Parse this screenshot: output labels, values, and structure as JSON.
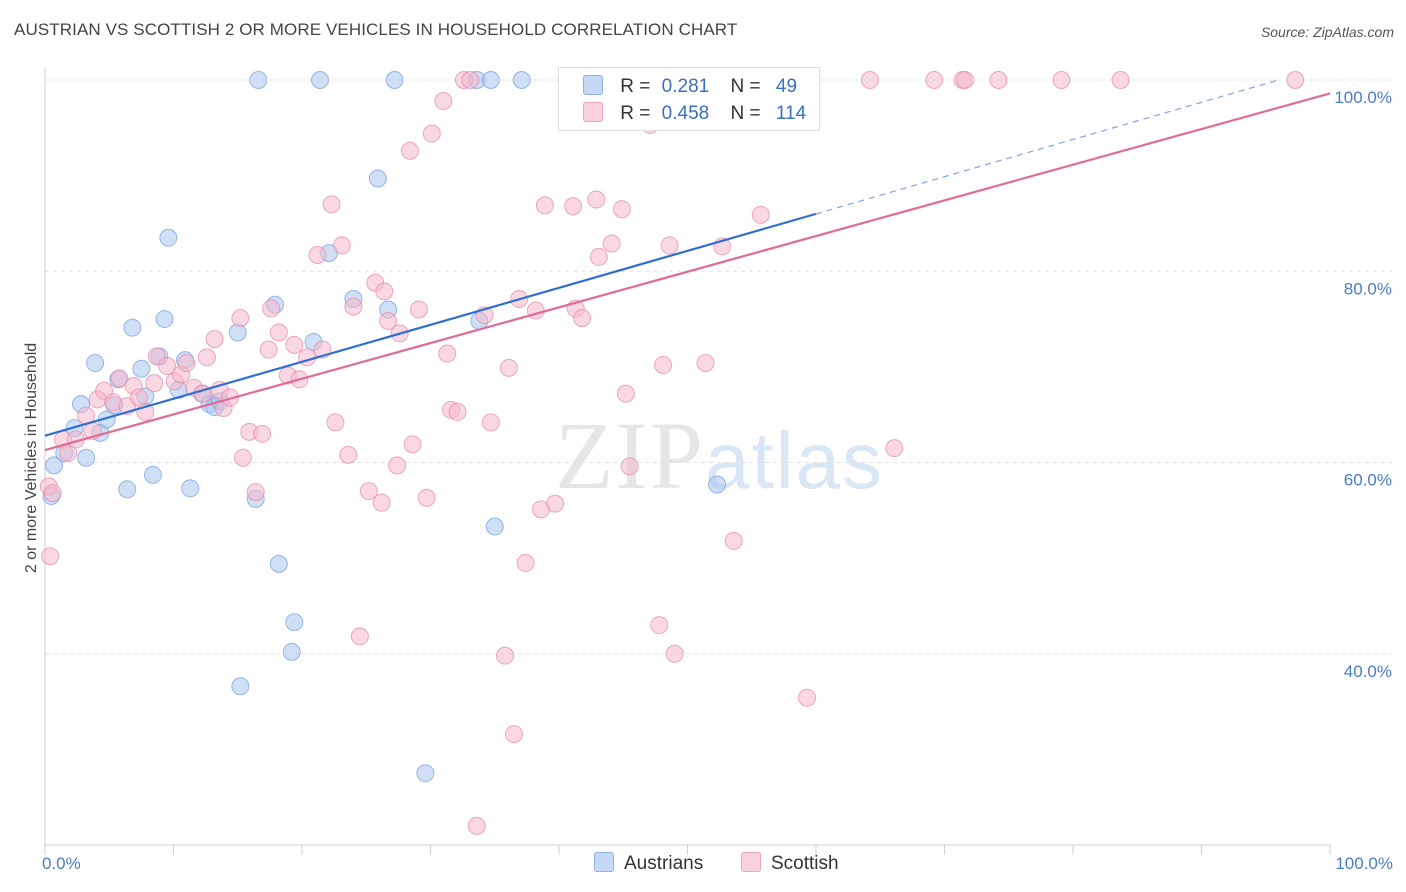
{
  "title": "AUSTRIAN VS SCOTTISH 2 OR MORE VEHICLES IN HOUSEHOLD CORRELATION CHART",
  "source": "Source: ZipAtlas.com",
  "watermark": {
    "zip": "ZIP",
    "atlas": "atlas"
  },
  "legend": {
    "rows": [
      {
        "r_label": "R =",
        "r_value": "0.281",
        "n_label": "N =",
        "n_value": "49",
        "color": "#a8c4ee"
      },
      {
        "r_label": "R =",
        "r_value": "0.458",
        "n_label": "N =",
        "n_value": "114",
        "color": "#f5b8cc"
      }
    ]
  },
  "bottom_legend": [
    {
      "label": "Austrians",
      "color": "#a8c4ee"
    },
    {
      "label": "Scottish",
      "color": "#f5b8cc"
    }
  ],
  "chart_data": {
    "type": "scatter",
    "title": "AUSTRIAN VS SCOTTISH 2 OR MORE VEHICLES IN HOUSEHOLD CORRELATION CHART",
    "xlabel": "",
    "ylabel": "2 or more Vehicles in Household",
    "xlim": [
      0,
      100
    ],
    "ylim": [
      20,
      100
    ],
    "x_tick_labels": [
      "0.0%",
      "100.0%"
    ],
    "y_ticks": [
      40,
      60,
      80,
      100
    ],
    "y_tick_labels": [
      "40.0%",
      "60.0%",
      "80.0%",
      "100.0%"
    ],
    "grid": true,
    "legend_position": "top-center",
    "series": [
      {
        "name": "Austrians",
        "color": "#6f9ee0",
        "fill": "#a8c4ee",
        "trend": {
          "x0": 0,
          "y0": 62.8,
          "x1": 60,
          "y1": 86.0,
          "dashed_to_x": 96,
          "dashed_to_y": 100
        },
        "points": [
          [
            0.5,
            56.5
          ],
          [
            0.7,
            59.7
          ],
          [
            1.5,
            61.0
          ],
          [
            2.3,
            63.6
          ],
          [
            2.8,
            66.1
          ],
          [
            3.2,
            60.5
          ],
          [
            3.9,
            70.4
          ],
          [
            4.3,
            63.1
          ],
          [
            4.8,
            64.5
          ],
          [
            5.4,
            66.0
          ],
          [
            5.7,
            68.7
          ],
          [
            6.4,
            57.2
          ],
          [
            6.8,
            74.1
          ],
          [
            7.5,
            69.8
          ],
          [
            7.8,
            66.9
          ],
          [
            8.4,
            58.7
          ],
          [
            8.9,
            71.1
          ],
          [
            9.3,
            75.0
          ],
          [
            9.6,
            83.5
          ],
          [
            10.4,
            67.6
          ],
          [
            10.9,
            70.7
          ],
          [
            11.3,
            57.3
          ],
          [
            12.2,
            67.2
          ],
          [
            12.8,
            66.1
          ],
          [
            13.2,
            65.8
          ],
          [
            13.6,
            66.4
          ],
          [
            15.0,
            73.6
          ],
          [
            15.2,
            36.6
          ],
          [
            16.4,
            56.2
          ],
          [
            16.6,
            100
          ],
          [
            17.9,
            76.5
          ],
          [
            18.2,
            49.4
          ],
          [
            19.2,
            40.2
          ],
          [
            19.4,
            43.3
          ],
          [
            20.9,
            72.6
          ],
          [
            21.4,
            100
          ],
          [
            22.1,
            81.9
          ],
          [
            24.0,
            77.1
          ],
          [
            25.9,
            89.7
          ],
          [
            26.7,
            76.0
          ],
          [
            27.2,
            100
          ],
          [
            29.6,
            27.5
          ],
          [
            33.6,
            100
          ],
          [
            33.8,
            74.8
          ],
          [
            34.7,
            100
          ],
          [
            35.0,
            53.3
          ],
          [
            37.1,
            100
          ],
          [
            41.1,
            100
          ],
          [
            52.3,
            57.7
          ]
        ]
      },
      {
        "name": "Scottish",
        "color": "#e487a8",
        "fill": "#f5b8cc",
        "trend": {
          "x0": 0,
          "y0": 61.3,
          "x1": 100,
          "y1": 98.6
        },
        "points": [
          [
            0.3,
            57.5
          ],
          [
            0.4,
            50.2
          ],
          [
            0.6,
            56.8
          ],
          [
            1.4,
            62.4
          ],
          [
            1.8,
            61.0
          ],
          [
            2.4,
            62.4
          ],
          [
            3.2,
            64.9
          ],
          [
            3.7,
            63.3
          ],
          [
            4.1,
            66.6
          ],
          [
            4.6,
            67.5
          ],
          [
            5.3,
            66.3
          ],
          [
            5.8,
            68.8
          ],
          [
            6.4,
            65.9
          ],
          [
            6.9,
            68.0
          ],
          [
            7.3,
            66.8
          ],
          [
            7.8,
            65.3
          ],
          [
            8.5,
            68.3
          ],
          [
            8.7,
            71.1
          ],
          [
            9.5,
            70.1
          ],
          [
            10.1,
            68.5
          ],
          [
            10.6,
            69.2
          ],
          [
            11.0,
            70.4
          ],
          [
            11.6,
            67.8
          ],
          [
            12.3,
            67.2
          ],
          [
            12.6,
            71.0
          ],
          [
            13.2,
            72.9
          ],
          [
            13.6,
            67.6
          ],
          [
            13.9,
            65.7
          ],
          [
            14.4,
            66.8
          ],
          [
            15.2,
            75.1
          ],
          [
            15.4,
            60.5
          ],
          [
            15.9,
            63.2
          ],
          [
            16.4,
            56.9
          ],
          [
            16.9,
            63.0
          ],
          [
            17.4,
            71.8
          ],
          [
            17.6,
            76.1
          ],
          [
            18.2,
            73.6
          ],
          [
            18.9,
            69.1
          ],
          [
            19.4,
            72.3
          ],
          [
            19.8,
            68.7
          ],
          [
            20.4,
            71.0
          ],
          [
            21.2,
            81.7
          ],
          [
            21.6,
            71.8
          ],
          [
            22.3,
            87.0
          ],
          [
            22.6,
            64.2
          ],
          [
            23.1,
            82.7
          ],
          [
            23.6,
            60.8
          ],
          [
            24.0,
            76.3
          ],
          [
            24.5,
            41.8
          ],
          [
            25.2,
            57.0
          ],
          [
            25.7,
            78.8
          ],
          [
            26.2,
            55.8
          ],
          [
            26.4,
            77.9
          ],
          [
            26.7,
            74.8
          ],
          [
            27.4,
            59.7
          ],
          [
            27.6,
            73.5
          ],
          [
            28.4,
            92.6
          ],
          [
            28.6,
            61.9
          ],
          [
            29.1,
            76.0
          ],
          [
            29.7,
            56.3
          ],
          [
            30.1,
            94.4
          ],
          [
            31.0,
            97.8
          ],
          [
            31.3,
            71.4
          ],
          [
            31.6,
            65.5
          ],
          [
            32.1,
            65.3
          ],
          [
            32.6,
            100
          ],
          [
            33.1,
            100
          ],
          [
            33.6,
            22.0
          ],
          [
            34.2,
            75.4
          ],
          [
            34.7,
            64.2
          ],
          [
            35.8,
            39.8
          ],
          [
            36.1,
            69.9
          ],
          [
            36.5,
            31.6
          ],
          [
            36.9,
            77.1
          ],
          [
            37.4,
            49.5
          ],
          [
            38.2,
            75.9
          ],
          [
            38.6,
            55.1
          ],
          [
            38.9,
            86.9
          ],
          [
            39.7,
            55.7
          ],
          [
            40.6,
            100
          ],
          [
            41.1,
            86.8
          ],
          [
            41.3,
            76.1
          ],
          [
            41.8,
            75.1
          ],
          [
            42.6,
            100
          ],
          [
            42.9,
            87.5
          ],
          [
            43.1,
            81.5
          ],
          [
            44.1,
            82.9
          ],
          [
            44.9,
            86.5
          ],
          [
            45.2,
            67.2
          ],
          [
            45.5,
            59.6
          ],
          [
            46.0,
            100
          ],
          [
            47.1,
            95.3
          ],
          [
            47.8,
            43.0
          ],
          [
            48.1,
            70.2
          ],
          [
            48.6,
            82.7
          ],
          [
            49.0,
            40.0
          ],
          [
            49.4,
            100
          ],
          [
            50.2,
            100
          ],
          [
            51.4,
            70.4
          ],
          [
            52.7,
            82.6
          ],
          [
            53.6,
            51.8
          ],
          [
            55.7,
            85.9
          ],
          [
            57.1,
            100
          ],
          [
            58.2,
            100
          ],
          [
            59.3,
            35.4
          ],
          [
            64.2,
            100
          ],
          [
            66.1,
            61.5
          ],
          [
            69.2,
            100
          ],
          [
            71.4,
            100
          ],
          [
            71.6,
            100
          ],
          [
            74.2,
            100
          ],
          [
            79.1,
            100
          ],
          [
            83.7,
            100
          ],
          [
            97.3,
            100
          ]
        ]
      }
    ]
  }
}
